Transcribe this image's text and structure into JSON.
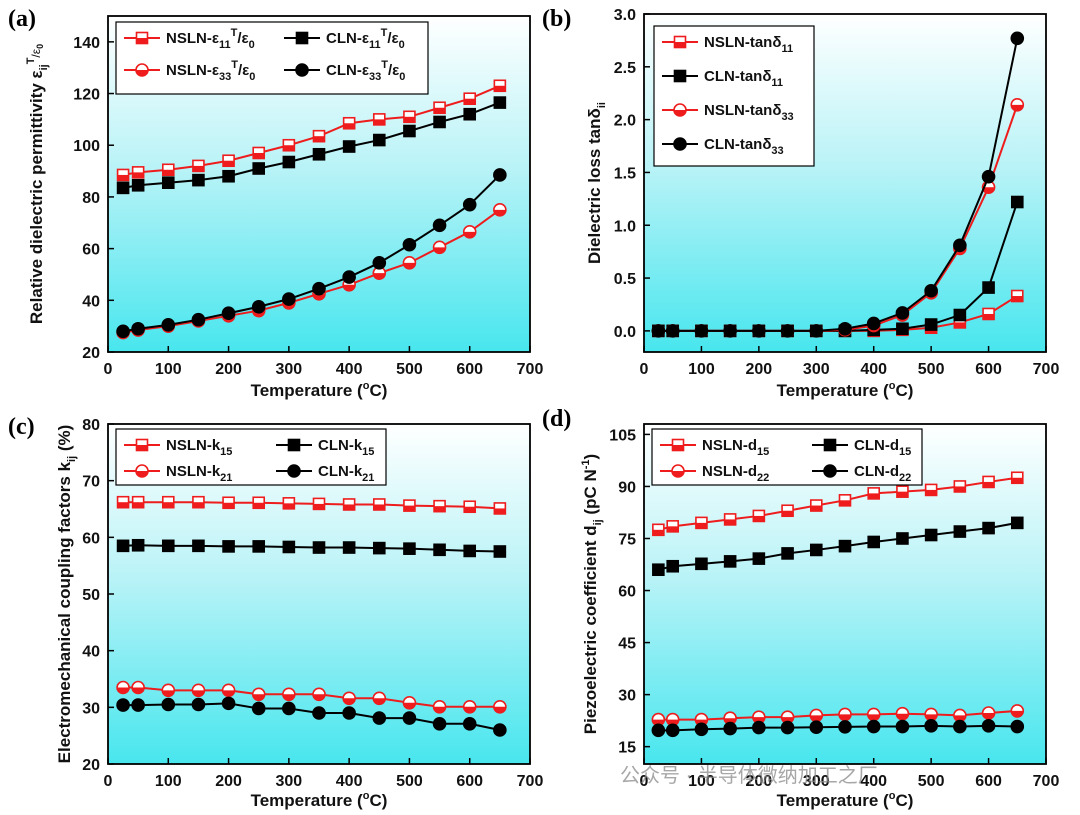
{
  "chart_data": [
    {
      "panel": "(a)",
      "type": "line",
      "xlabel": "Temperature (°C)",
      "ylabel": "Relative dielectric permittivity εijT/ε0",
      "xlim": [
        0,
        700
      ],
      "ylim": [
        20,
        150
      ],
      "xticks": [
        0,
        100,
        200,
        300,
        400,
        500,
        600,
        700
      ],
      "yticks": [
        20,
        40,
        60,
        80,
        100,
        120,
        140
      ],
      "legend_columns": 2,
      "series": [
        {
          "name": "NSLN-ε11T/ε0",
          "color": "#ee1c1c",
          "marker": "square-open",
          "x": [
            25,
            50,
            100,
            150,
            200,
            250,
            300,
            350,
            400,
            450,
            500,
            550,
            600,
            650
          ],
          "y": [
            88.5,
            89.5,
            90.5,
            92,
            94,
            97,
            100,
            103.5,
            108.5,
            110,
            111,
            114.5,
            118,
            123
          ]
        },
        {
          "name": "CLN-ε11T/ε0",
          "color": "#000000",
          "marker": "square-filled",
          "x": [
            25,
            50,
            100,
            150,
            200,
            250,
            300,
            350,
            400,
            450,
            500,
            550,
            600,
            650
          ],
          "y": [
            83.5,
            84.5,
            85.5,
            86.5,
            88,
            91,
            93.5,
            96.5,
            99.5,
            102,
            105.5,
            109,
            112,
            116.5
          ]
        },
        {
          "name": "NSLN-ε33T/ε0",
          "color": "#ee1c1c",
          "marker": "circle-open",
          "x": [
            25,
            50,
            100,
            150,
            200,
            250,
            300,
            350,
            400,
            450,
            500,
            550,
            600,
            650
          ],
          "y": [
            27.5,
            28.5,
            30,
            32,
            34,
            36,
            39,
            42.5,
            46,
            50.5,
            54.5,
            60.5,
            66.5,
            75
          ]
        },
        {
          "name": "CLN-ε33T/ε0",
          "color": "#000000",
          "marker": "circle-filled",
          "x": [
            25,
            50,
            100,
            150,
            200,
            250,
            300,
            350,
            400,
            450,
            500,
            550,
            600,
            650
          ],
          "y": [
            28,
            29,
            30.5,
            32.5,
            35,
            37.5,
            40.5,
            44.5,
            49,
            54.5,
            61.5,
            69,
            77,
            88.5
          ]
        }
      ]
    },
    {
      "panel": "(b)",
      "type": "line",
      "xlabel": "Temperature (°C)",
      "ylabel": "Dielectric loss tanδii",
      "xlim": [
        0,
        700
      ],
      "ylim": [
        -0.2,
        3.0
      ],
      "xticks": [
        0,
        100,
        200,
        300,
        400,
        500,
        600,
        700
      ],
      "yticks": [
        0.0,
        0.5,
        1.0,
        1.5,
        2.0,
        2.5,
        3.0
      ],
      "ytick_labels": [
        "0.0",
        "0.5",
        "1.0",
        "1.5",
        "2.0",
        "2.5",
        "3.0"
      ],
      "legend_columns": 1,
      "series": [
        {
          "name": "NSLN-tanδ11",
          "color": "#ee1c1c",
          "marker": "square-open",
          "x": [
            25,
            50,
            100,
            150,
            200,
            250,
            300,
            350,
            400,
            450,
            500,
            550,
            600,
            650
          ],
          "y": [
            0,
            0,
            0,
            0,
            0,
            0,
            0,
            0,
            0,
            0.01,
            0.03,
            0.08,
            0.16,
            0.33
          ]
        },
        {
          "name": "CLN-tanδ11",
          "color": "#000000",
          "marker": "square-filled",
          "x": [
            25,
            50,
            100,
            150,
            200,
            250,
            300,
            350,
            400,
            450,
            500,
            550,
            600,
            650
          ],
          "y": [
            0,
            0,
            0,
            0,
            0,
            0,
            0,
            0,
            0.01,
            0.02,
            0.06,
            0.15,
            0.41,
            1.22
          ]
        },
        {
          "name": "NSLN-tanδ33",
          "color": "#ee1c1c",
          "marker": "circle-open",
          "x": [
            25,
            50,
            100,
            150,
            200,
            250,
            300,
            350,
            400,
            450,
            500,
            550,
            600,
            650
          ],
          "y": [
            0,
            0,
            0,
            0,
            0,
            0,
            0,
            0.01,
            0.05,
            0.15,
            0.36,
            0.78,
            1.36,
            2.14
          ]
        },
        {
          "name": "CLN-tanδ33",
          "color": "#000000",
          "marker": "circle-filled",
          "x": [
            25,
            50,
            100,
            150,
            200,
            250,
            300,
            350,
            400,
            450,
            500,
            550,
            600,
            650
          ],
          "y": [
            0,
            0,
            0,
            0,
            0,
            0,
            0,
            0.02,
            0.07,
            0.17,
            0.38,
            0.81,
            1.46,
            2.77
          ]
        }
      ]
    },
    {
      "panel": "(c)",
      "type": "line",
      "xlabel": "Temperature (°C)",
      "ylabel": "Electromechanical coupling factors kij (%)",
      "xlim": [
        0,
        700
      ],
      "ylim": [
        20,
        80
      ],
      "xticks": [
        0,
        100,
        200,
        300,
        400,
        500,
        600,
        700
      ],
      "yticks": [
        20,
        30,
        40,
        50,
        60,
        70,
        80
      ],
      "legend_columns": 2,
      "series": [
        {
          "name": "NSLN-k15",
          "color": "#ee1c1c",
          "marker": "square-open",
          "x": [
            25,
            50,
            100,
            150,
            200,
            250,
            300,
            350,
            400,
            450,
            500,
            550,
            600,
            650
          ],
          "y": [
            66.2,
            66.2,
            66.2,
            66.2,
            66.1,
            66.1,
            66.0,
            65.9,
            65.8,
            65.8,
            65.6,
            65.5,
            65.4,
            65.1
          ]
        },
        {
          "name": "CLN-k15",
          "color": "#000000",
          "marker": "square-filled",
          "x": [
            25,
            50,
            100,
            150,
            200,
            250,
            300,
            350,
            400,
            450,
            500,
            550,
            600,
            650
          ],
          "y": [
            58.5,
            58.6,
            58.5,
            58.5,
            58.4,
            58.4,
            58.3,
            58.2,
            58.2,
            58.1,
            58.0,
            57.8,
            57.6,
            57.5
          ]
        },
        {
          "name": "NSLN-k21",
          "color": "#ee1c1c",
          "marker": "circle-open",
          "x": [
            25,
            50,
            100,
            150,
            200,
            250,
            300,
            350,
            400,
            450,
            500,
            550,
            600,
            650
          ],
          "y": [
            33.5,
            33.5,
            33.0,
            33.0,
            33.0,
            32.3,
            32.3,
            32.3,
            31.6,
            31.6,
            30.8,
            30.1,
            30.1,
            30.1
          ]
        },
        {
          "name": "CLN-k21",
          "color": "#000000",
          "marker": "circle-filled",
          "x": [
            25,
            50,
            100,
            150,
            200,
            250,
            300,
            350,
            400,
            450,
            500,
            550,
            600,
            650
          ],
          "y": [
            30.4,
            30.4,
            30.5,
            30.5,
            30.7,
            29.8,
            29.8,
            29.0,
            29.0,
            28.1,
            28.1,
            27.1,
            27.1,
            26.0
          ]
        }
      ]
    },
    {
      "panel": "(d)",
      "type": "line",
      "xlabel": "Temperature (°C)",
      "ylabel": "Piezoelectric coefficient dij (pC N-1)",
      "xlim": [
        0,
        700
      ],
      "ylim": [
        10,
        108
      ],
      "xticks": [
        0,
        100,
        200,
        300,
        400,
        500,
        600,
        700
      ],
      "yticks": [
        15,
        30,
        45,
        60,
        75,
        90,
        105
      ],
      "legend_columns": 2,
      "series": [
        {
          "name": "NSLN-d15",
          "color": "#ee1c1c",
          "marker": "square-open",
          "x": [
            25,
            50,
            100,
            150,
            200,
            250,
            300,
            350,
            400,
            450,
            500,
            550,
            600,
            650
          ],
          "y": [
            77.5,
            78.5,
            79.5,
            80.5,
            81.5,
            83,
            84.5,
            86,
            88,
            88.5,
            89,
            90,
            91.3,
            92.5
          ]
        },
        {
          "name": "CLN-d15",
          "color": "#000000",
          "marker": "square-filled",
          "x": [
            25,
            50,
            100,
            150,
            200,
            250,
            300,
            350,
            400,
            450,
            500,
            550,
            600,
            650
          ],
          "y": [
            66,
            67,
            67.7,
            68.4,
            69.2,
            70.7,
            71.7,
            72.8,
            74,
            75,
            76,
            77,
            78,
            79.5
          ]
        },
        {
          "name": "NSLN-d22",
          "color": "#ee1c1c",
          "marker": "circle-open",
          "x": [
            25,
            50,
            100,
            150,
            200,
            250,
            300,
            350,
            400,
            450,
            500,
            550,
            600,
            650
          ],
          "y": [
            22.8,
            22.8,
            22.8,
            23.2,
            23.5,
            23.5,
            24,
            24.3,
            24.3,
            24.5,
            24.3,
            24,
            24.7,
            25.3
          ]
        },
        {
          "name": "CLN-d22",
          "color": "#000000",
          "marker": "circle-filled",
          "x": [
            25,
            50,
            100,
            150,
            200,
            250,
            300,
            350,
            400,
            450,
            500,
            550,
            600,
            650
          ],
          "y": [
            19.7,
            19.7,
            20,
            20.2,
            20.5,
            20.5,
            20.6,
            20.7,
            20.8,
            20.8,
            21,
            20.8,
            21,
            20.8
          ]
        }
      ]
    }
  ],
  "watermark": "公众号 · 半导体微纳加工之厂"
}
